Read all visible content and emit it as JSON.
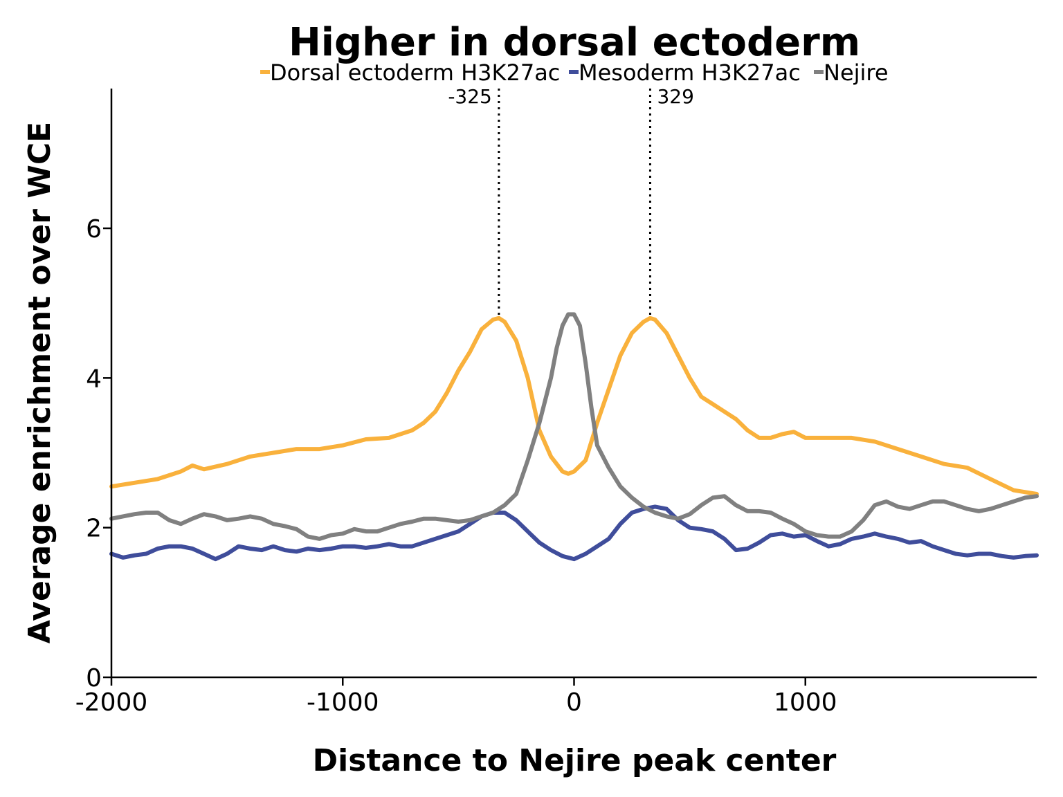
{
  "chart_data": {
    "type": "line",
    "title": "Higher in dorsal ectoderm",
    "xlabel": "Distance to Nejire peak center",
    "ylabel": "Average enrichment over WCE",
    "xlim": [
      -2000,
      2000
    ],
    "ylim": [
      0,
      7.85
    ],
    "xticks": [
      -2000,
      -1000,
      0,
      1000
    ],
    "xtick_labels": [
      "-2000",
      "-1000",
      "0",
      "1000"
    ],
    "yticks": [
      0,
      2,
      4,
      6
    ],
    "ytick_labels": [
      "0",
      "2",
      "4",
      "6"
    ],
    "grid": false,
    "legend": "top-center",
    "series": [
      {
        "name": "Dorsal ectoderm H3K27ac",
        "color": "#F9B13C",
        "x": [
          -2000,
          -1900,
          -1800,
          -1700,
          -1650,
          -1600,
          -1500,
          -1400,
          -1300,
          -1200,
          -1100,
          -1000,
          -900,
          -800,
          -700,
          -650,
          -600,
          -550,
          -500,
          -450,
          -400,
          -350,
          -325,
          -300,
          -250,
          -200,
          -150,
          -100,
          -50,
          -25,
          0,
          50,
          100,
          150,
          200,
          250,
          300,
          329,
          350,
          400,
          450,
          500,
          550,
          600,
          650,
          700,
          750,
          800,
          850,
          900,
          950,
          1000,
          1100,
          1200,
          1300,
          1400,
          1500,
          1600,
          1700,
          1800,
          1900,
          2000
        ],
        "y": [
          2.55,
          2.6,
          2.65,
          2.75,
          2.83,
          2.78,
          2.85,
          2.95,
          3.0,
          3.05,
          3.05,
          3.1,
          3.18,
          3.2,
          3.3,
          3.4,
          3.55,
          3.8,
          4.1,
          4.35,
          4.65,
          4.78,
          4.8,
          4.75,
          4.5,
          4.0,
          3.3,
          2.95,
          2.75,
          2.72,
          2.75,
          2.9,
          3.4,
          3.85,
          4.3,
          4.6,
          4.75,
          4.8,
          4.78,
          4.6,
          4.3,
          4.0,
          3.75,
          3.65,
          3.55,
          3.45,
          3.3,
          3.2,
          3.2,
          3.25,
          3.28,
          3.2,
          3.2,
          3.2,
          3.15,
          3.05,
          2.95,
          2.85,
          2.8,
          2.65,
          2.5,
          2.45
        ]
      },
      {
        "name": "Mesoderm H3K27ac",
        "color": "#3F4D9B",
        "x": [
          -2000,
          -1950,
          -1900,
          -1850,
          -1800,
          -1750,
          -1700,
          -1650,
          -1600,
          -1550,
          -1500,
          -1450,
          -1400,
          -1350,
          -1300,
          -1250,
          -1200,
          -1150,
          -1100,
          -1050,
          -1000,
          -950,
          -900,
          -850,
          -800,
          -750,
          -700,
          -650,
          -600,
          -550,
          -500,
          -450,
          -400,
          -350,
          -300,
          -250,
          -200,
          -150,
          -100,
          -50,
          0,
          50,
          100,
          150,
          200,
          250,
          300,
          350,
          400,
          450,
          500,
          550,
          600,
          650,
          700,
          750,
          800,
          850,
          900,
          950,
          1000,
          1050,
          1100,
          1150,
          1200,
          1250,
          1300,
          1350,
          1400,
          1450,
          1500,
          1550,
          1600,
          1650,
          1700,
          1750,
          1800,
          1850,
          1900,
          1950,
          2000
        ],
        "y": [
          1.65,
          1.6,
          1.63,
          1.65,
          1.72,
          1.75,
          1.75,
          1.72,
          1.65,
          1.58,
          1.65,
          1.75,
          1.72,
          1.7,
          1.75,
          1.7,
          1.68,
          1.72,
          1.7,
          1.72,
          1.75,
          1.75,
          1.73,
          1.75,
          1.78,
          1.75,
          1.75,
          1.8,
          1.85,
          1.9,
          1.95,
          2.05,
          2.15,
          2.2,
          2.2,
          2.1,
          1.95,
          1.8,
          1.7,
          1.62,
          1.58,
          1.65,
          1.75,
          1.85,
          2.05,
          2.2,
          2.25,
          2.28,
          2.25,
          2.1,
          2.0,
          1.98,
          1.95,
          1.85,
          1.7,
          1.72,
          1.8,
          1.9,
          1.92,
          1.88,
          1.9,
          1.82,
          1.75,
          1.78,
          1.85,
          1.88,
          1.92,
          1.88,
          1.85,
          1.8,
          1.82,
          1.75,
          1.7,
          1.65,
          1.63,
          1.65,
          1.65,
          1.62,
          1.6,
          1.62,
          1.63
        ]
      },
      {
        "name": "Nejire",
        "color": "#808080",
        "x": [
          -2000,
          -1950,
          -1900,
          -1850,
          -1800,
          -1750,
          -1700,
          -1650,
          -1600,
          -1550,
          -1500,
          -1450,
          -1400,
          -1350,
          -1300,
          -1250,
          -1200,
          -1150,
          -1100,
          -1050,
          -1000,
          -950,
          -900,
          -850,
          -800,
          -750,
          -700,
          -650,
          -600,
          -550,
          -500,
          -450,
          -400,
          -350,
          -300,
          -250,
          -200,
          -150,
          -100,
          -75,
          -50,
          -25,
          0,
          25,
          50,
          75,
          100,
          150,
          200,
          250,
          300,
          350,
          400,
          450,
          500,
          550,
          600,
          650,
          700,
          750,
          800,
          850,
          900,
          950,
          1000,
          1050,
          1100,
          1150,
          1200,
          1250,
          1300,
          1350,
          1400,
          1450,
          1500,
          1550,
          1600,
          1650,
          1700,
          1750,
          1800,
          1850,
          1900,
          1950,
          2000
        ],
        "y": [
          2.12,
          2.15,
          2.18,
          2.2,
          2.2,
          2.1,
          2.05,
          2.12,
          2.18,
          2.15,
          2.1,
          2.12,
          2.15,
          2.12,
          2.05,
          2.02,
          1.98,
          1.88,
          1.85,
          1.9,
          1.92,
          1.98,
          1.95,
          1.95,
          2.0,
          2.05,
          2.08,
          2.12,
          2.12,
          2.1,
          2.08,
          2.1,
          2.15,
          2.2,
          2.3,
          2.45,
          2.9,
          3.4,
          4.0,
          4.4,
          4.7,
          4.85,
          4.85,
          4.7,
          4.2,
          3.6,
          3.1,
          2.8,
          2.55,
          2.4,
          2.28,
          2.2,
          2.15,
          2.12,
          2.18,
          2.3,
          2.4,
          2.42,
          2.3,
          2.22,
          2.22,
          2.2,
          2.12,
          2.05,
          1.95,
          1.9,
          1.88,
          1.88,
          1.95,
          2.1,
          2.3,
          2.35,
          2.28,
          2.25,
          2.3,
          2.35,
          2.35,
          2.3,
          2.25,
          2.22,
          2.25,
          2.3,
          2.35,
          2.4,
          2.42
        ]
      }
    ],
    "annotations": [
      {
        "x": -325,
        "y": 4.78,
        "label": "-325"
      },
      {
        "x": 329,
        "y": 4.8,
        "label": "329"
      }
    ]
  }
}
